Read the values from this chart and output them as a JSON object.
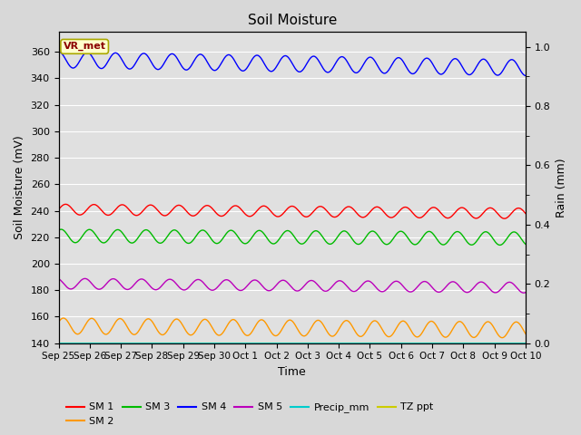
{
  "title": "Soil Moisture",
  "xlabel": "Time",
  "ylabel_left": "Soil Moisture (mV)",
  "ylabel_right": "Rain (mm)",
  "annotation": "VR_met",
  "fig_bg": "#d8d8d8",
  "plot_bg": "#e0e0e0",
  "ylim_left": [
    140,
    375
  ],
  "ylim_right": [
    0.0,
    1.05
  ],
  "yticks_left": [
    140,
    160,
    180,
    200,
    220,
    240,
    260,
    280,
    300,
    320,
    340,
    360
  ],
  "yticks_right": [
    0.0,
    0.2,
    0.4,
    0.6,
    0.8,
    1.0
  ],
  "x_start_days": 0,
  "x_end_days": 15,
  "num_points": 1500,
  "series": {
    "SM1": {
      "color": "#ff0000",
      "base": 241,
      "amp": 4,
      "freq_per_day": 1.1,
      "phase": 0.0,
      "drift": -3,
      "label": "SM 1"
    },
    "SM2": {
      "color": "#ff9900",
      "base": 153,
      "amp": 6,
      "freq_per_day": 1.1,
      "phase": 0.5,
      "drift": -3,
      "label": "SM 2"
    },
    "SM3": {
      "color": "#00bb00",
      "base": 221,
      "amp": 5,
      "freq_per_day": 1.1,
      "phase": 1.0,
      "drift": -2,
      "label": "SM 3"
    },
    "SM4": {
      "color": "#0000ff",
      "base": 354,
      "amp": 6,
      "freq_per_day": 1.1,
      "phase": 1.5,
      "drift": -6,
      "label": "SM 4"
    },
    "SM5": {
      "color": "#bb00bb",
      "base": 185,
      "amp": 4,
      "freq_per_day": 1.1,
      "phase": 2.0,
      "drift": -3,
      "label": "SM 5"
    },
    "Precip": {
      "color": "#00cccc",
      "base": 0.0,
      "amp": 0.0,
      "freq_per_day": 1.0,
      "phase": 0.0,
      "drift": 0,
      "label": "Precip_mm"
    },
    "TZ": {
      "color": "#cccc00",
      "base": 140,
      "amp": 0.0,
      "freq_per_day": 1.0,
      "phase": 0.0,
      "drift": 0,
      "label": "TZ ppt"
    }
  },
  "x_tick_labels": [
    "Sep 25",
    "Sep 26",
    "Sep 27",
    "Sep 28",
    "Sep 29",
    "Sep 30",
    "Oct 1",
    "Oct 2",
    "Oct 3",
    "Oct 4",
    "Oct 5",
    "Oct 6",
    "Oct 7",
    "Oct 8",
    "Oct 9",
    "Oct 10"
  ],
  "x_tick_positions": [
    0,
    1,
    2,
    3,
    4,
    5,
    6,
    7,
    8,
    9,
    10,
    11,
    12,
    13,
    14,
    15
  ]
}
